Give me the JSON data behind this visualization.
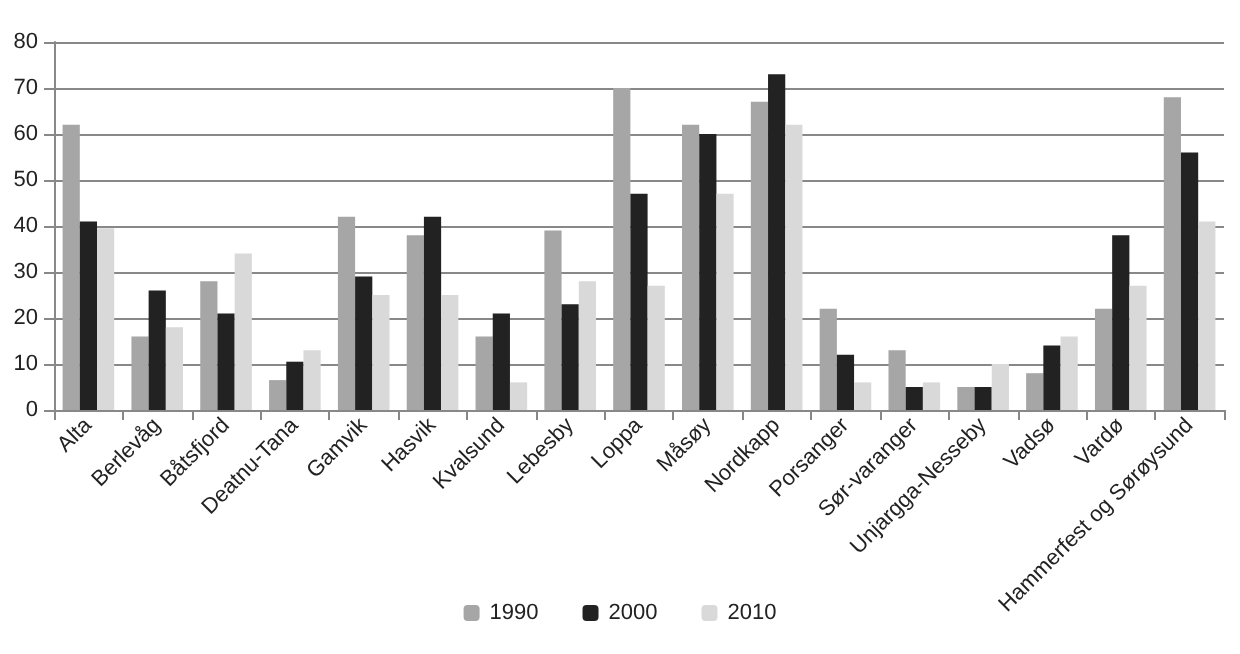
{
  "chart_data": {
    "type": "bar",
    "categories": [
      "Alta",
      "Berlevåg",
      "Båtsfjord",
      "Deatnu-Tana",
      "Gamvik",
      "Hasvik",
      "Kvalsund",
      "Lebesby",
      "Loppa",
      "Måsøy",
      "Nordkapp",
      "Porsanger",
      "Sør-varanger",
      "Unjargga-Nesseby",
      "Vadsø",
      "Vardø",
      "Hammerfest og Sørøysund"
    ],
    "series": [
      {
        "name": "1990",
        "color": "#a6a6a6",
        "values": [
          62,
          16,
          28,
          6.5,
          42,
          38,
          16,
          39,
          70,
          62,
          67,
          22,
          13,
          5,
          8,
          22,
          68
        ]
      },
      {
        "name": "2000",
        "color": "#222222",
        "values": [
          41,
          26,
          21,
          10.5,
          29,
          42,
          21,
          23,
          47,
          60,
          73,
          12,
          5,
          5,
          14,
          38,
          56
        ]
      },
      {
        "name": "2010",
        "color": "#d9d9d9",
        "values": [
          39.5,
          18,
          34,
          13,
          25,
          25,
          6,
          28,
          27,
          47,
          62,
          6,
          6,
          10,
          16,
          27,
          41
        ]
      }
    ],
    "ylim": [
      0,
      80
    ],
    "yticks": [
      0,
      10,
      20,
      30,
      40,
      50,
      60,
      70,
      80
    ],
    "grid": "y",
    "legend": "bottom"
  }
}
